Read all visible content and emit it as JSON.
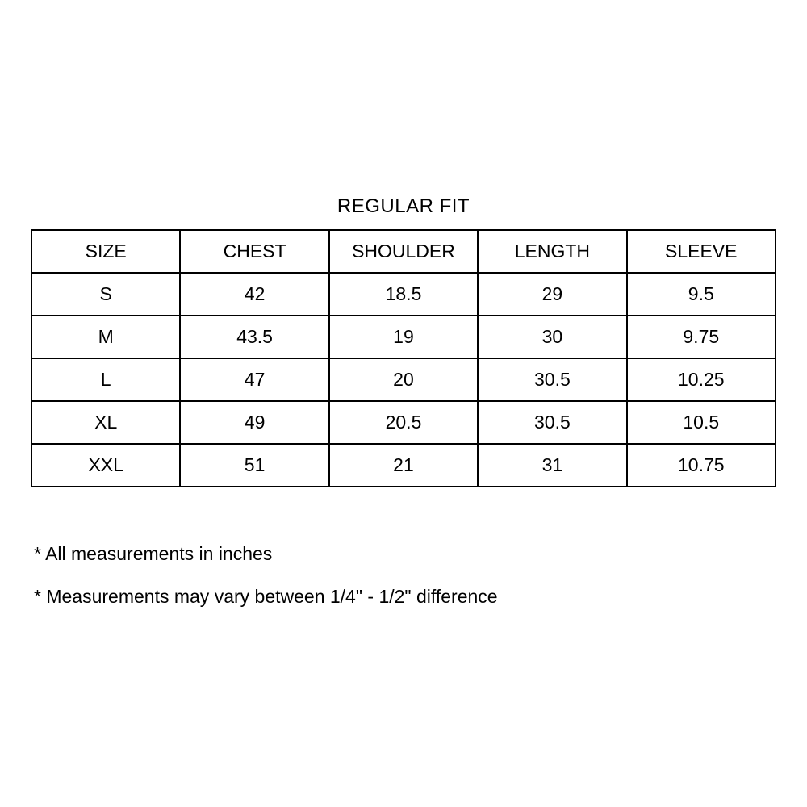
{
  "title": "REGULAR FIT",
  "size_chart": {
    "headers": [
      "SIZE",
      "CHEST",
      "SHOULDER",
      "LENGTH",
      "SLEEVE"
    ],
    "rows": [
      [
        "S",
        "42",
        "18.5",
        "29",
        "9.5"
      ],
      [
        "M",
        "43.5",
        "19",
        "30",
        "9.75"
      ],
      [
        "L",
        "47",
        "20",
        "30.5",
        "10.25"
      ],
      [
        "XL",
        "49",
        "20.5",
        "30.5",
        "10.5"
      ],
      [
        "XXL",
        "51",
        "21",
        "31",
        "10.75"
      ]
    ]
  },
  "footnotes": [
    "* All measurements in inches",
    "* Measurements may vary between 1/4\" - 1/2\" difference"
  ],
  "colors": {
    "text": "#000000",
    "border": "#000000",
    "background": "#ffffff"
  }
}
